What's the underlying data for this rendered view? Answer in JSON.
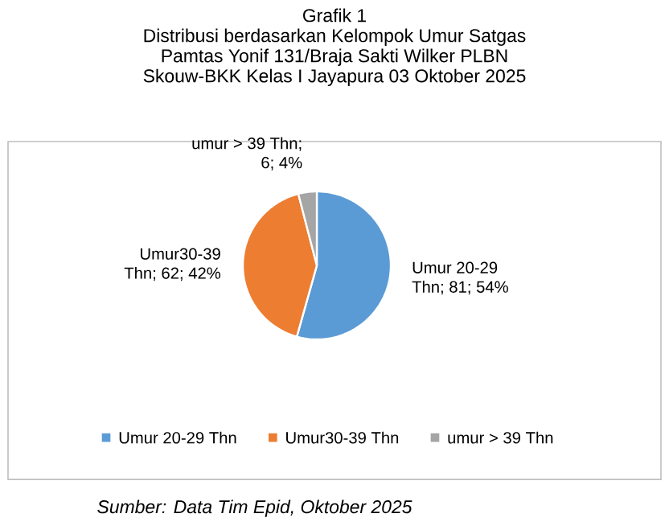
{
  "chart_data": {
    "type": "pie",
    "title": "Grafik 1",
    "subtitle": "Distribusi berdasarkan Kelompok Umur Satgas Pamtas Yonif 131/Braja Sakti Wilker PLBN Skouw-BKK Kelas I Jayapura 03 Oktober 2025",
    "categories": [
      "Umur 20-29 Thn",
      "Umur30-39 Thn",
      "umur > 39 Thn"
    ],
    "values": [
      81,
      62,
      6
    ],
    "colors": [
      "#5b9bd5",
      "#ed7d31",
      "#a5a5a5"
    ],
    "value_labels": [
      "Umur 20-29 Thn; 81; 54%",
      "Umur30-39 Thn; 62; 42%",
      "umur > 39 Thn; 6; 4%"
    ],
    "legend": "bottom",
    "annotations": [
      "Sumber: Data Tim Epid, Oktober 2025"
    ]
  }
}
